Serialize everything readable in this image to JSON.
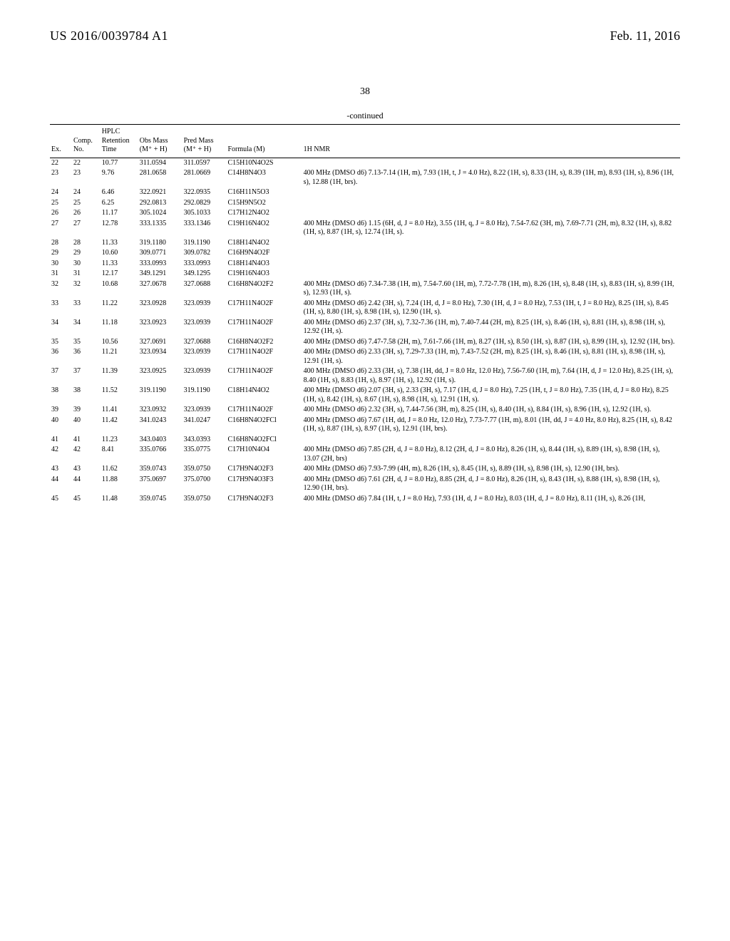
{
  "header": {
    "pub_number": "US 2016/0039784 A1",
    "pub_date": "Feb. 11, 2016"
  },
  "page_number": "38",
  "continued_label": "-continued",
  "table": {
    "columns": {
      "ex": "Ex.",
      "comp": "Comp. No.",
      "hplc": "HPLC Retention Time",
      "obs": "Obs Mass (M⁺ + H)",
      "pred": "Pred Mass (M⁺ + H)",
      "formula": "Formula (M)",
      "nmr": "1H NMR"
    },
    "rows": [
      {
        "ex": "22",
        "comp": "22",
        "hplc": "10.77",
        "obs": "311.0594",
        "pred": "311.0597",
        "formula": "C15H10N4O2S",
        "nmr": ""
      },
      {
        "ex": "23",
        "comp": "23",
        "hplc": "9.76",
        "obs": "281.0658",
        "pred": "281.0669",
        "formula": "C14H8N4O3",
        "nmr": "400 MHz (DMSO d6) 7.13-7.14 (1H, m), 7.93 (1H, t, J = 4.0 Hz), 8.22 (1H, s), 8.33 (1H, s), 8.39 (1H, m), 8.93 (1H, s), 8.96 (1H, s), 12.88 (1H, brs)."
      },
      {
        "ex": "24",
        "comp": "24",
        "hplc": "6.46",
        "obs": "322.0921",
        "pred": "322.0935",
        "formula": "C16H11N5O3",
        "nmr": ""
      },
      {
        "ex": "25",
        "comp": "25",
        "hplc": "6.25",
        "obs": "292.0813",
        "pred": "292.0829",
        "formula": "C15H9N5O2",
        "nmr": ""
      },
      {
        "ex": "26",
        "comp": "26",
        "hplc": "11.17",
        "obs": "305.1024",
        "pred": "305.1033",
        "formula": "C17H12N4O2",
        "nmr": ""
      },
      {
        "ex": "27",
        "comp": "27",
        "hplc": "12.78",
        "obs": "333.1335",
        "pred": "333.1346",
        "formula": "C19H16N4O2",
        "nmr": "400 MHz (DMSO d6) 1.15 (6H, d, J = 8.0 Hz), 3.55 (1H, q, J = 8.0 Hz), 7.54-7.62 (3H, m), 7.69-7.71 (2H, m), 8.32 (1H, s), 8.82 (1H, s), 8.87 (1H, s), 12.74 (1H, s)."
      },
      {
        "ex": "28",
        "comp": "28",
        "hplc": "11.33",
        "obs": "319.1180",
        "pred": "319.1190",
        "formula": "C18H14N4O2",
        "nmr": ""
      },
      {
        "ex": "29",
        "comp": "29",
        "hplc": "10.60",
        "obs": "309.0771",
        "pred": "309.0782",
        "formula": "C16H9N4O2F",
        "nmr": ""
      },
      {
        "ex": "30",
        "comp": "30",
        "hplc": "11.33",
        "obs": "333.0993",
        "pred": "333.0993",
        "formula": "C18H14N4O3",
        "nmr": ""
      },
      {
        "ex": "31",
        "comp": "31",
        "hplc": "12.17",
        "obs": "349.1291",
        "pred": "349.1295",
        "formula": "C19H16N4O3",
        "nmr": ""
      },
      {
        "ex": "32",
        "comp": "32",
        "hplc": "10.68",
        "obs": "327.0678",
        "pred": "327.0688",
        "formula": "C16H8N4O2F2",
        "nmr": "400 MHz (DMSO d6) 7.34-7.38 (1H, m), 7.54-7.60 (1H, m), 7.72-7.78 (1H, m), 8.26 (1H, s), 8.48 (1H, s), 8.83 (1H, s), 8.99 (1H, s), 12.93 (1H, s)."
      },
      {
        "ex": "33",
        "comp": "33",
        "hplc": "11.22",
        "obs": "323.0928",
        "pred": "323.0939",
        "formula": "C17H11N4O2F",
        "nmr": "400 MHz (DMSO d6) 2.42 (3H, s), 7.24 (1H, d, J = 8.0 Hz), 7.30 (1H, d, J = 8.0 Hz), 7.53 (1H, t, J = 8.0 Hz), 8.25 (1H, s), 8.45 (1H, s), 8.80 (1H, s), 8.98 (1H, s), 12.90 (1H, s)."
      },
      {
        "ex": "34",
        "comp": "34",
        "hplc": "11.18",
        "obs": "323.0923",
        "pred": "323.0939",
        "formula": "C17H11N4O2F",
        "nmr": "400 MHz (DMSO d6) 2.37 (3H, s), 7.32-7.36 (1H, m), 7.40-7.44 (2H, m), 8.25 (1H, s), 8.46 (1H, s), 8.81 (1H, s), 8.98 (1H, s), 12.92 (1H, s)."
      },
      {
        "ex": "35",
        "comp": "35",
        "hplc": "10.56",
        "obs": "327.0691",
        "pred": "327.0688",
        "formula": "C16H8N4O2F2",
        "nmr": "400 MHz (DMSO d6) 7.47-7.58 (2H, m), 7.61-7.66 (1H, m), 8.27 (1H, s), 8.50 (1H, s), 8.87 (1H, s), 8.99 (1H, s), 12.92 (1H, brs)."
      },
      {
        "ex": "36",
        "comp": "36",
        "hplc": "11.21",
        "obs": "323.0934",
        "pred": "323.0939",
        "formula": "C17H11N4O2F",
        "nmr": "400 MHz (DMSO d6) 2.33 (3H, s), 7.29-7.33 (1H, m), 7.43-7.52 (2H, m), 8.25 (1H, s), 8.46 (1H, s), 8.81 (1H, s), 8.98 (1H, s), 12.91 (1H, s)."
      },
      {
        "ex": "37",
        "comp": "37",
        "hplc": "11.39",
        "obs": "323.0925",
        "pred": "323.0939",
        "formula": "C17H11N4O2F",
        "nmr": "400 MHz (DMSO d6) 2.33 (3H, s), 7.38 (1H, dd, J = 8.0 Hz, 12.0 Hz), 7.56-7.60 (1H, m), 7.64 (1H, d, J = 12.0 Hz), 8.25 (1H, s), 8.40 (1H, s), 8.83 (1H, s), 8.97 (1H, s), 12.92 (1H, s)."
      },
      {
        "ex": "38",
        "comp": "38",
        "hplc": "11.52",
        "obs": "319.1190",
        "pred": "319.1190",
        "formula": "C18H14N4O2",
        "nmr": "400 MHz (DMSO d6) 2.07 (3H, s), 2.33 (3H, s), 7.17 (1H, d, J = 8.0 Hz), 7.25 (1H, t, J = 8.0 Hz), 7.35 (1H, d, J = 8.0 Hz), 8.25 (1H, s), 8.42 (1H, s), 8.67 (1H, s), 8.98 (1H, s), 12.91 (1H, s)."
      },
      {
        "ex": "39",
        "comp": "39",
        "hplc": "11.41",
        "obs": "323.0932",
        "pred": "323.0939",
        "formula": "C17H11N4O2F",
        "nmr": "400 MHz (DMSO d6) 2.32 (3H, s), 7.44-7.56 (3H, m), 8.25 (1H, s), 8.40 (1H, s), 8.84 (1H, s), 8.96 (1H, s), 12.92 (1H, s)."
      },
      {
        "ex": "40",
        "comp": "40",
        "hplc": "11.42",
        "obs": "341.0243",
        "pred": "341.0247",
        "formula": "C16H8N4O2FCl",
        "nmr": "400 MHz (DMSO d6) 7.67 (1H, dd, J = 8.0 Hz, 12.0 Hz), 7.73-7.77 (1H, m), 8.01 (1H, dd, J = 4.0 Hz, 8.0 Hz), 8.25 (1H, s), 8.42 (1H, s), 8.87 (1H, s), 8.97 (1H, s), 12.91 (1H, brs)."
      },
      {
        "ex": "41",
        "comp": "41",
        "hplc": "11.23",
        "obs": "343.0403",
        "pred": "343.0393",
        "formula": "C16H8N4O2FCl",
        "nmr": ""
      },
      {
        "ex": "42",
        "comp": "42",
        "hplc": "8.41",
        "obs": "335.0766",
        "pred": "335.0775",
        "formula": "C17H10N4O4",
        "nmr": "400 MHz (DMSO d6) 7.85 (2H, d, J = 8.0 Hz), 8.12 (2H, d, J = 8.0 Hz), 8.26 (1H, s), 8.44 (1H, s), 8.89 (1H, s), 8.98 (1H, s), 13.07 (2H, brs)"
      },
      {
        "ex": "43",
        "comp": "43",
        "hplc": "11.62",
        "obs": "359.0743",
        "pred": "359.0750",
        "formula": "C17H9N4O2F3",
        "nmr": "400 MHz (DMSO d6) 7.93-7.99 (4H, m), 8.26 (1H, s), 8.45 (1H, s), 8.89 (1H, s), 8.98 (1H, s), 12.90 (1H, brs)."
      },
      {
        "ex": "44",
        "comp": "44",
        "hplc": "11.88",
        "obs": "375.0697",
        "pred": "375.0700",
        "formula": "C17H9N4O3F3",
        "nmr": "400 MHz (DMSO d6) 7.61 (2H, d, J = 8.0 Hz), 8.85 (2H, d, J = 8.0 Hz), 8.26 (1H, s), 8.43 (1H, s), 8.88 (1H, s), 8.98 (1H, s), 12.90 (1H, brs)."
      },
      {
        "ex": "45",
        "comp": "45",
        "hplc": "11.48",
        "obs": "359.0745",
        "pred": "359.0750",
        "formula": "C17H9N4O2F3",
        "nmr": "400 MHz (DMSO d6) 7.84 (1H, t, J = 8.0 Hz), 7.93 (1H, d, J = 8.0 Hz), 8.03 (1H, d, J = 8.0 Hz), 8.11 (1H, s), 8.26 (1H,"
      }
    ]
  }
}
